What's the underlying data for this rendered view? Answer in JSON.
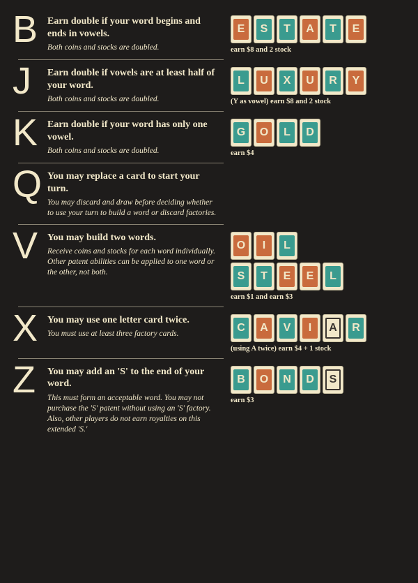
{
  "colors": {
    "background": "#1e1c1b",
    "text": "#f2e8c9",
    "tile_bg": "#f2e8c9",
    "teal": "#3a9b8f",
    "orange": "#c96b3d",
    "outline": "#3a3530"
  },
  "entries": [
    {
      "letter": "B",
      "title": "Earn double if your word begins and ends in vowels.",
      "sub": "Both coins and stocks are doubled.",
      "tile_rows": [
        [
          {
            "ch": "E",
            "style": "orange"
          },
          {
            "ch": "S",
            "style": "teal"
          },
          {
            "ch": "T",
            "style": "teal"
          },
          {
            "ch": "A",
            "style": "orange"
          },
          {
            "ch": "T",
            "style": "teal"
          },
          {
            "ch": "E",
            "style": "orange"
          }
        ]
      ],
      "caption": "earn $8 and 2 stock"
    },
    {
      "letter": "J",
      "title": "Earn double if vowels are at least half of your word.",
      "sub": "Both coins and stocks are doubled.",
      "tile_rows": [
        [
          {
            "ch": "L",
            "style": "teal"
          },
          {
            "ch": "U",
            "style": "orange"
          },
          {
            "ch": "X",
            "style": "teal"
          },
          {
            "ch": "U",
            "style": "orange"
          },
          {
            "ch": "R",
            "style": "teal"
          },
          {
            "ch": "Y",
            "style": "orange"
          }
        ]
      ],
      "caption": "(Y as vowel) earn $8 and 2 stock"
    },
    {
      "letter": "K",
      "title": "Earn double if your word has only one vowel.",
      "sub": "Both coins and stocks are doubled.",
      "tile_rows": [
        [
          {
            "ch": "G",
            "style": "teal"
          },
          {
            "ch": "O",
            "style": "orange"
          },
          {
            "ch": "L",
            "style": "teal"
          },
          {
            "ch": "D",
            "style": "teal"
          }
        ]
      ],
      "caption": "earn $4"
    },
    {
      "letter": "Q",
      "title": "You may replace a card to start your turn.",
      "sub": "You may discard and draw before deciding whether to use your turn to build a word or discard factories.",
      "tile_rows": [],
      "caption": ""
    },
    {
      "letter": "V",
      "title": "You may build two words.",
      "sub": "Receive coins and stocks for each word individually. Other patent abilities can be applied to one word or the other, not both.",
      "tile_rows": [
        [
          {
            "ch": "O",
            "style": "orange"
          },
          {
            "ch": "I",
            "style": "orange"
          },
          {
            "ch": "L",
            "style": "teal"
          }
        ],
        [
          {
            "ch": "S",
            "style": "teal"
          },
          {
            "ch": "T",
            "style": "teal"
          },
          {
            "ch": "E",
            "style": "orange"
          },
          {
            "ch": "E",
            "style": "orange"
          },
          {
            "ch": "L",
            "style": "teal"
          }
        ]
      ],
      "caption": "earn $1 and earn $3"
    },
    {
      "letter": "X",
      "title": "You may use one letter card twice.",
      "sub": "You must use at least three factory cards.",
      "tile_rows": [
        [
          {
            "ch": "C",
            "style": "teal"
          },
          {
            "ch": "A",
            "style": "orange"
          },
          {
            "ch": "V",
            "style": "teal"
          },
          {
            "ch": "I",
            "style": "orange"
          },
          {
            "ch": "A",
            "style": "outline"
          },
          {
            "ch": "R",
            "style": "teal"
          }
        ]
      ],
      "caption": "(using A twice) earn $4 + 1 stock"
    },
    {
      "letter": "Z",
      "title": "You may add an 'S' to the end of your word.",
      "sub": "This must form an acceptable word. You may not purchase the 'S' patent without using an 'S' factory. Also, other players do not earn royalties on this extended 'S.'",
      "tile_rows": [
        [
          {
            "ch": "B",
            "style": "teal"
          },
          {
            "ch": "O",
            "style": "orange"
          },
          {
            "ch": "N",
            "style": "teal"
          },
          {
            "ch": "D",
            "style": "teal"
          },
          {
            "ch": "S",
            "style": "outline"
          }
        ]
      ],
      "caption": "earn $3"
    }
  ]
}
